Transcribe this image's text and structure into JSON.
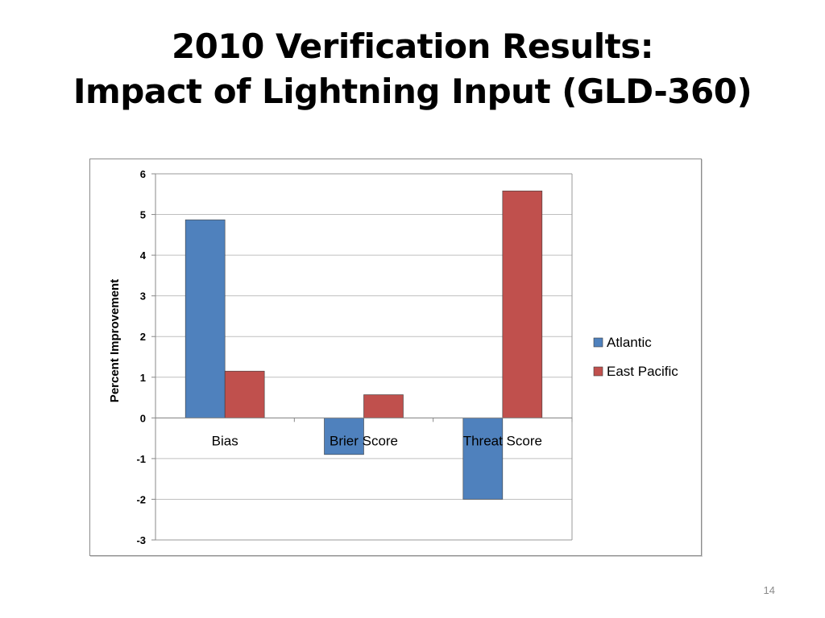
{
  "slide": {
    "title_line1": "2010 Verification Results:",
    "title_line2": "Impact of Lightning Input (GLD-360)",
    "page_number": "14"
  },
  "chart_data": {
    "type": "bar",
    "title": "",
    "xlabel": "",
    "ylabel": "Percent Improvement",
    "categories": [
      "Bias",
      "Brier Score",
      "Threat Score"
    ],
    "series": [
      {
        "name": "Atlantic",
        "values": [
          4.87,
          -0.9,
          -2.0
        ],
        "color": "#4f81bd"
      },
      {
        "name": "East Pacific",
        "values": [
          1.15,
          0.57,
          5.58
        ],
        "color": "#c0504d"
      }
    ],
    "ylim": [
      -3,
      6
    ],
    "yticks": [
      6,
      5,
      4,
      3,
      2,
      1,
      0,
      -1,
      -2,
      -3
    ],
    "grid": true,
    "legend_position": "right"
  }
}
